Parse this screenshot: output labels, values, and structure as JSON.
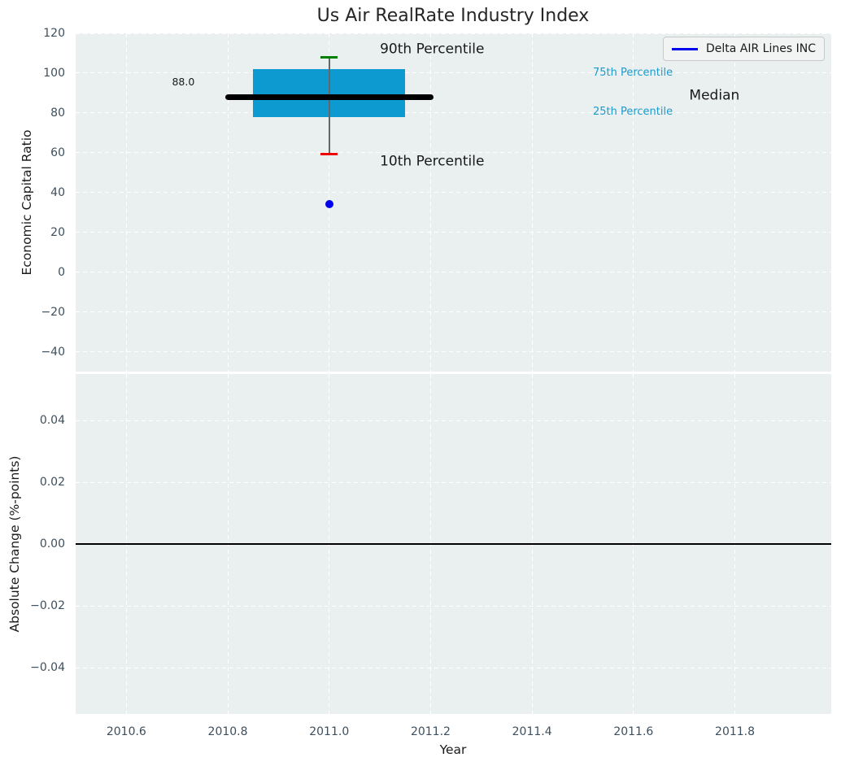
{
  "styles": {
    "figure_bg": "#ffffff",
    "plot_bg": "#eaeff0",
    "grid_color": "#ffffff",
    "tick_label_color": "#3d4f5d",
    "text_color": "#1a1a1a",
    "title_color": "#262626",
    "legend_bg": "#f2f4f4",
    "legend_border": "#c9c9c9"
  },
  "chart_data": [
    {
      "type": "boxplot",
      "title": "Us Air RealRate Industry Index",
      "ylabel": "Economic Capital Ratio",
      "xlim": [
        2010.5,
        2011.99
      ],
      "ylim": [
        -50,
        120
      ],
      "grid": "white dashed, on",
      "yticks": [
        {
          "v": 120,
          "label": "120"
        },
        {
          "v": 100,
          "label": "100"
        },
        {
          "v": 80,
          "label": "80"
        },
        {
          "v": 60,
          "label": "60"
        },
        {
          "v": 40,
          "label": "40"
        },
        {
          "v": 20,
          "label": "20"
        },
        {
          "v": 0,
          "label": "0"
        },
        {
          "v": -20,
          "label": "−20"
        },
        {
          "v": -40,
          "label": "−40"
        }
      ],
      "legend": {
        "label": "Delta AIR Lines INC",
        "color": "#0000ee",
        "position": "upper right"
      },
      "box": {
        "x": 2011.0,
        "median": 88.0,
        "q1": 78,
        "q3": 102,
        "p10": 59.5,
        "p90": 108,
        "box_halfwidth_years": 0.15,
        "median_halfwidth_years": 0.205,
        "cap_halfwidth_years": 0.017,
        "fill_color": "#0d9ad0",
        "median_color": "#000000",
        "whisker_color": "#666666",
        "p90_cap_color": "#008000",
        "p10_cap_color": "#ee0000"
      },
      "points": [
        {
          "series": "Delta AIR Lines INC",
          "x": 2011.0,
          "y": 34,
          "color": "#0000ee",
          "radius": 5
        }
      ],
      "annotations": [
        {
          "text": "88.0",
          "x": 2010.69,
          "y": 95.5,
          "size": 12.5,
          "color": "#1a1a1a"
        },
        {
          "text": "90th Percentile",
          "x": 2011.1,
          "y": 112,
          "size": 17,
          "color": "#1a1a1a"
        },
        {
          "text": "10th Percentile",
          "x": 2011.1,
          "y": 55.5,
          "size": 17,
          "color": "#1a1a1a"
        },
        {
          "text": "75th Percentile",
          "x": 2011.52,
          "y": 100,
          "size": 13,
          "color": "#1b9ccd"
        },
        {
          "text": "25th Percentile",
          "x": 2011.52,
          "y": 80.5,
          "size": 13,
          "color": "#1b9ccd"
        },
        {
          "text": "Median",
          "x": 2011.71,
          "y": 88.5,
          "size": 17,
          "color": "#1a1a1a"
        }
      ]
    },
    {
      "type": "line",
      "ylabel": "Absolute Change (%-points)",
      "xlabel": "Year",
      "xlim": [
        2010.5,
        2011.99
      ],
      "ylim": [
        -0.055,
        0.055
      ],
      "grid": "white dashed, on",
      "yticks": [
        {
          "v": 0.04,
          "label": "0.04"
        },
        {
          "v": 0.02,
          "label": "0.02"
        },
        {
          "v": 0,
          "label": "0.00"
        },
        {
          "v": -0.02,
          "label": "−0.02"
        },
        {
          "v": -0.04,
          "label": "−0.04"
        }
      ],
      "xticks": [
        {
          "v": 2010.6,
          "label": "2010.6"
        },
        {
          "v": 2010.8,
          "label": "2010.8"
        },
        {
          "v": 2011.0,
          "label": "2011.0"
        },
        {
          "v": 2011.2,
          "label": "2011.2"
        },
        {
          "v": 2011.4,
          "label": "2011.4"
        },
        {
          "v": 2011.6,
          "label": "2011.6"
        },
        {
          "v": 2011.8,
          "label": "2011.8"
        }
      ],
      "zero_line": {
        "y": 0.0,
        "color": "#000000"
      },
      "series": []
    }
  ]
}
